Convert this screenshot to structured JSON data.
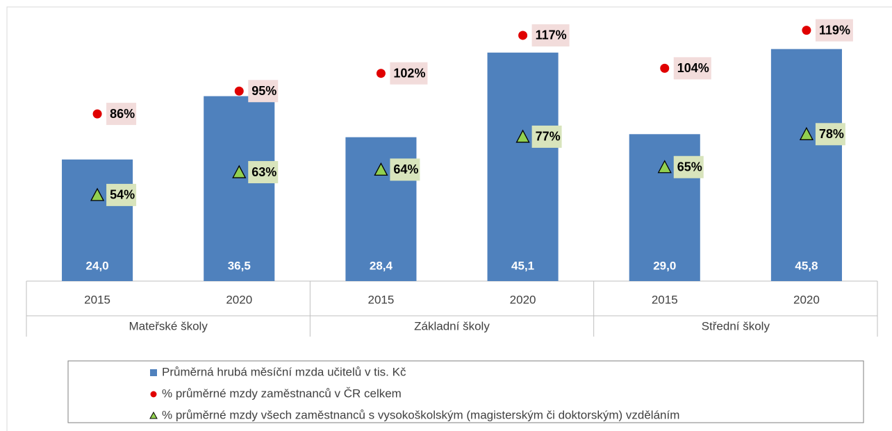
{
  "chart_data": {
    "type": "bar",
    "categories": [
      "2015",
      "2020",
      "2015",
      "2020",
      "2015",
      "2020"
    ],
    "groups": [
      "Mateřské školy",
      "Základní školy",
      "Střední školy"
    ],
    "ylim": [
      0,
      50
    ],
    "y2lim": [
      20,
      120
    ],
    "series": [
      {
        "name": "Průměrná hrubá měsíční mzda učitelů v tis. Kč",
        "color": "#4f81bd",
        "values": [
          24.0,
          36.5,
          28.4,
          45.1,
          29.0,
          45.8
        ],
        "value_labels": [
          "24,0",
          "36,5",
          "28,4",
          "45,1",
          "29,0",
          "45,8"
        ]
      },
      {
        "name": "% průměrné mzdy zaměstnanců v ČR celkem",
        "color": "#e00000",
        "axis": "y2",
        "marker": "circle",
        "values": [
          86,
          95,
          102,
          117,
          104,
          119
        ],
        "value_labels": [
          "86%",
          "95%",
          "102%",
          "117%",
          "104%",
          "119%"
        ]
      },
      {
        "name": "% průměrné mzdy všech zaměstnanců s vysokoškolským (magisterským či doktorským) vzděláním",
        "color": "#92d050",
        "axis": "y2",
        "marker": "triangle",
        "values": [
          54,
          63,
          64,
          77,
          65,
          78
        ],
        "value_labels": [
          "54%",
          "63%",
          "64%",
          "77%",
          "65%",
          "78%"
        ]
      }
    ]
  }
}
